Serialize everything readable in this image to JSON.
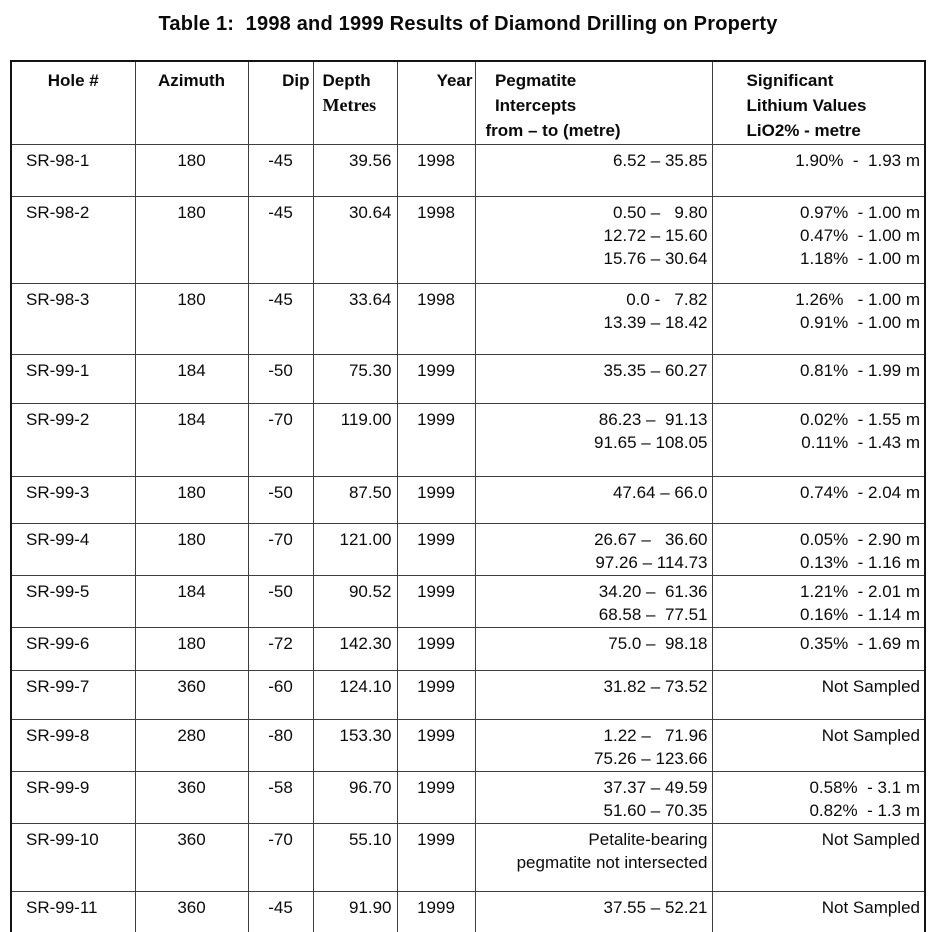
{
  "title": "Table 1:  1998 and 1999 Results of Diamond Drilling on Property",
  "colors": {
    "background": "#ffffff",
    "text": "#0a0a0a",
    "border_outer": "#141414",
    "border_inner": "#3e3e3e"
  },
  "table": {
    "columns": [
      {
        "key": "hole",
        "label": "Hole #"
      },
      {
        "key": "azimuth",
        "label": "Azimuth"
      },
      {
        "key": "dip",
        "label": "Dip"
      },
      {
        "key": "depth",
        "label": "Depth",
        "label2": "Metres"
      },
      {
        "key": "year",
        "label": "Year"
      },
      {
        "key": "pegmatite",
        "label": "  Pegmatite\n  Intercepts\nfrom – to (metre)"
      },
      {
        "key": "lithium",
        "label": "Significant\nLithium Values\nLiO2% - metre"
      }
    ],
    "rows": [
      {
        "hole": "SR-98-1",
        "azimuth": "180",
        "dip": "-45",
        "depth": "39.56",
        "year": "1998",
        "pegmatite": "6.52 – 35.85",
        "lithium": "1.90%  -  1.93 m"
      },
      {
        "hole": "SR-98-2",
        "azimuth": "180",
        "dip": "-45",
        "depth": "30.64",
        "year": "1998",
        "pegmatite": "0.50 –   9.80\n12.72 – 15.60\n15.76 – 30.64",
        "lithium": "0.97%  - 1.00 m\n0.47%  - 1.00 m\n1.18%  - 1.00 m"
      },
      {
        "hole": "SR-98-3",
        "azimuth": "180",
        "dip": "-45",
        "depth": "33.64",
        "year": "1998",
        "pegmatite": "0.0 -   7.82\n13.39 – 18.42",
        "lithium": "1.26%   - 1.00 m\n0.91%  - 1.00 m"
      },
      {
        "hole": "SR-99-1",
        "azimuth": "184",
        "dip": "-50",
        "depth": "75.30",
        "year": "1999",
        "pegmatite": "35.35 – 60.27",
        "lithium": "0.81%  - 1.99 m"
      },
      {
        "hole": "SR-99-2",
        "azimuth": "184",
        "dip": "-70",
        "depth": "119.00",
        "year": "1999",
        "pegmatite": "86.23 –  91.13\n91.65 – 108.05",
        "lithium": "0.02%  - 1.55 m\n0.11%  - 1.43 m"
      },
      {
        "hole": "SR-99-3",
        "azimuth": "180",
        "dip": "-50",
        "depth": "87.50",
        "year": "1999",
        "pegmatite": "47.64 – 66.0",
        "lithium": "0.74%  - 2.04 m"
      },
      {
        "hole": "SR-99-4",
        "azimuth": "180",
        "dip": "-70",
        "depth": "121.00",
        "year": "1999",
        "pegmatite": "26.67 –   36.60\n97.26 – 114.73",
        "lithium": "0.05%  - 2.90 m\n0.13%  - 1.16 m"
      },
      {
        "hole": "SR-99-5",
        "azimuth": "184",
        "dip": "-50",
        "depth": "90.52",
        "year": "1999",
        "pegmatite": "34.20 –  61.36\n68.58 –  77.51",
        "lithium": "1.21%  - 2.01 m\n0.16%  - 1.14 m"
      },
      {
        "hole": "SR-99-6",
        "azimuth": "180",
        "dip": "-72",
        "depth": "142.30",
        "year": "1999",
        "pegmatite": "75.0 –  98.18",
        "lithium": "0.35%  - 1.69 m"
      },
      {
        "hole": "SR-99-7",
        "azimuth": "360",
        "dip": "-60",
        "depth": "124.10",
        "year": "1999",
        "pegmatite": "31.82 – 73.52",
        "lithium": "Not Sampled"
      },
      {
        "hole": "SR-99-8",
        "azimuth": "280",
        "dip": "-80",
        "depth": "153.30",
        "year": "1999",
        "pegmatite": "1.22 –   71.96\n75.26 – 123.66",
        "lithium": "Not Sampled"
      },
      {
        "hole": "SR-99-9",
        "azimuth": "360",
        "dip": "-58",
        "depth": "96.70",
        "year": "1999",
        "pegmatite": "37.37 – 49.59\n51.60 – 70.35",
        "lithium": "0.58%  - 3.1 m\n0.82%  - 1.3 m"
      },
      {
        "hole": "SR-99-10",
        "azimuth": "360",
        "dip": "-70",
        "depth": "55.10",
        "year": "1999",
        "pegmatite": "Petalite-bearing\npegmatite not intersected",
        "lithium": "Not Sampled"
      },
      {
        "hole": "SR-99-11",
        "azimuth": "360",
        "dip": "-45",
        "depth": "91.90",
        "year": "1999",
        "pegmatite": "37.55 – 52.21",
        "lithium": "Not Sampled"
      }
    ]
  }
}
